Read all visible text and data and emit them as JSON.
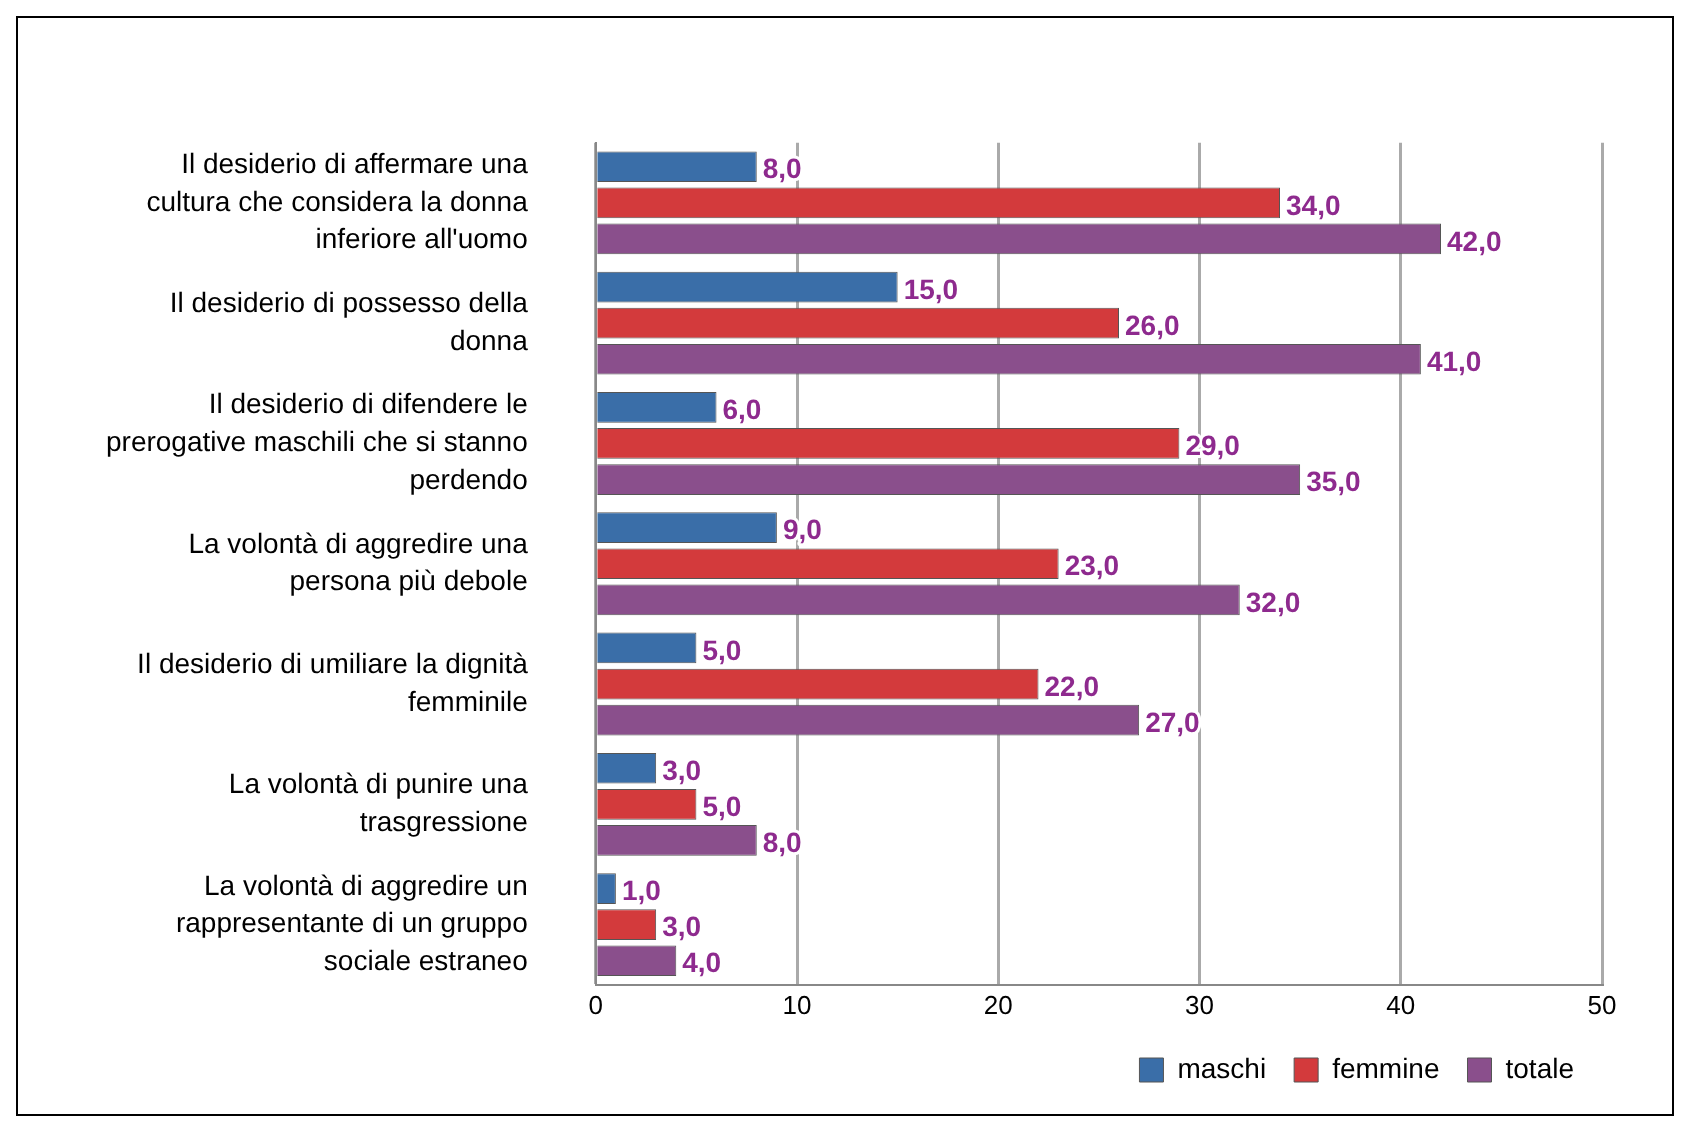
{
  "chart_data": {
    "type": "bar",
    "orientation": "horizontal",
    "categories": [
      "Il desiderio di affermare una cultura che considera la donna inferiore all'uomo",
      "Il desiderio di possesso della donna",
      "Il desiderio di difendere le prerogative maschili che si stanno perdendo",
      "La volontà di aggredire una persona più debole",
      "Il desiderio di umiliare la dignità femminile",
      "La volontà di punire una trasgressione",
      "La volontà di aggredire un rappresentante di un gruppo sociale estraneo"
    ],
    "series": [
      {
        "name": "maschi",
        "color": "#3a6ea8",
        "values": [
          8,
          15,
          6,
          9,
          5,
          3,
          1
        ],
        "value_labels": [
          "8,0",
          "15,0",
          "6,0",
          "9,0",
          "5,0",
          "3,0",
          "1,0"
        ]
      },
      {
        "name": "femmine",
        "color": "#d33a3c",
        "values": [
          34,
          26,
          29,
          23,
          22,
          5,
          3
        ],
        "value_labels": [
          "34,0",
          "26,0",
          "29,0",
          "23,0",
          "22,0",
          "5,0",
          "3,0"
        ]
      },
      {
        "name": "totale",
        "color": "#8a4f8c",
        "values": [
          42,
          41,
          35,
          32,
          27,
          8,
          4
        ],
        "value_labels": [
          "42,0",
          "41,0",
          "35,0",
          "32,0",
          "27,0",
          "8,0",
          "4,0"
        ]
      }
    ],
    "xlim": [
      0,
      50
    ],
    "xticks": [
      0,
      10,
      20,
      30,
      40,
      50
    ],
    "grid": "x",
    "legend": "bottom right"
  }
}
